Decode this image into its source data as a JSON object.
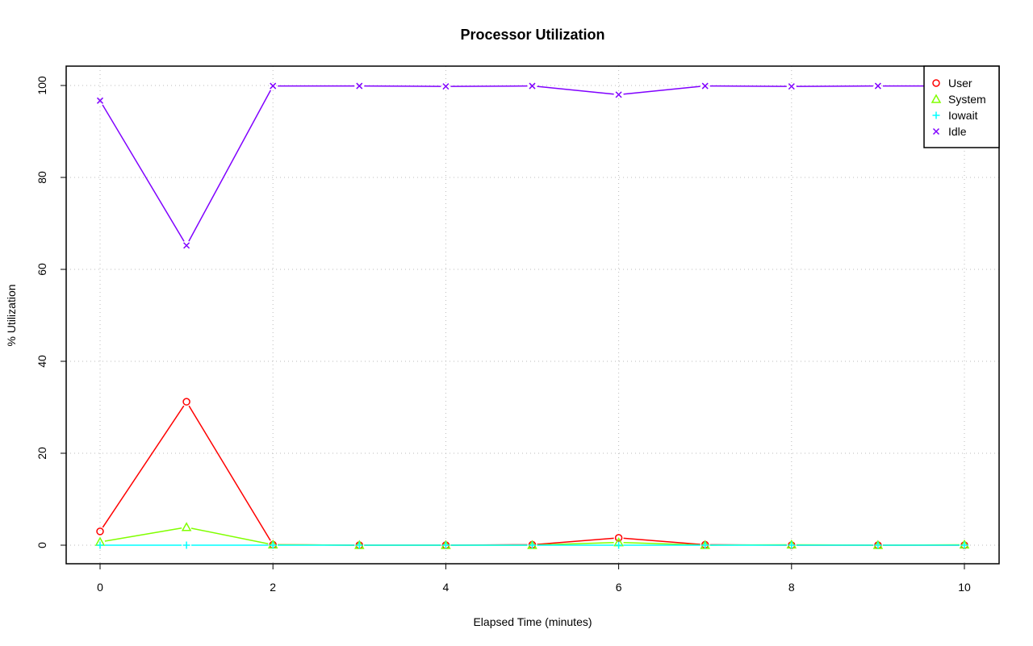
{
  "chart_data": {
    "type": "line",
    "title": "Processor Utilization",
    "xlabel": "Elapsed Time (minutes)",
    "ylabel": "% Utilization",
    "xlim": [
      0,
      10
    ],
    "ylim": [
      0,
      100
    ],
    "xticks": [
      0,
      2,
      4,
      6,
      8,
      10
    ],
    "yticks": [
      0,
      20,
      40,
      60,
      80,
      100
    ],
    "grid": true,
    "legend_position": "top-right",
    "x": [
      0,
      1,
      2,
      3,
      4,
      5,
      6,
      7,
      8,
      9,
      10
    ],
    "series": [
      {
        "name": "User",
        "color": "#FF0000",
        "marker": "circle",
        "values": [
          3.0,
          31.2,
          0.1,
          0,
          0,
          0.1,
          1.6,
          0.1,
          0,
          0,
          0
        ]
      },
      {
        "name": "System",
        "color": "#80FF00",
        "marker": "triangle",
        "values": [
          0.7,
          3.9,
          0.1,
          0,
          0,
          0,
          0.6,
          0,
          0.1,
          0,
          0.1
        ]
      },
      {
        "name": "Iowait",
        "color": "#00FFFF",
        "marker": "plus",
        "values": [
          0,
          0,
          0,
          0,
          0,
          0,
          0,
          0,
          0,
          0,
          0
        ]
      },
      {
        "name": "Idle",
        "color": "#8000FF",
        "marker": "cross",
        "values": [
          96.7,
          65.2,
          99.9,
          99.9,
          99.8,
          99.9,
          98.0,
          99.9,
          99.8,
          99.9,
          99.9
        ]
      }
    ]
  }
}
